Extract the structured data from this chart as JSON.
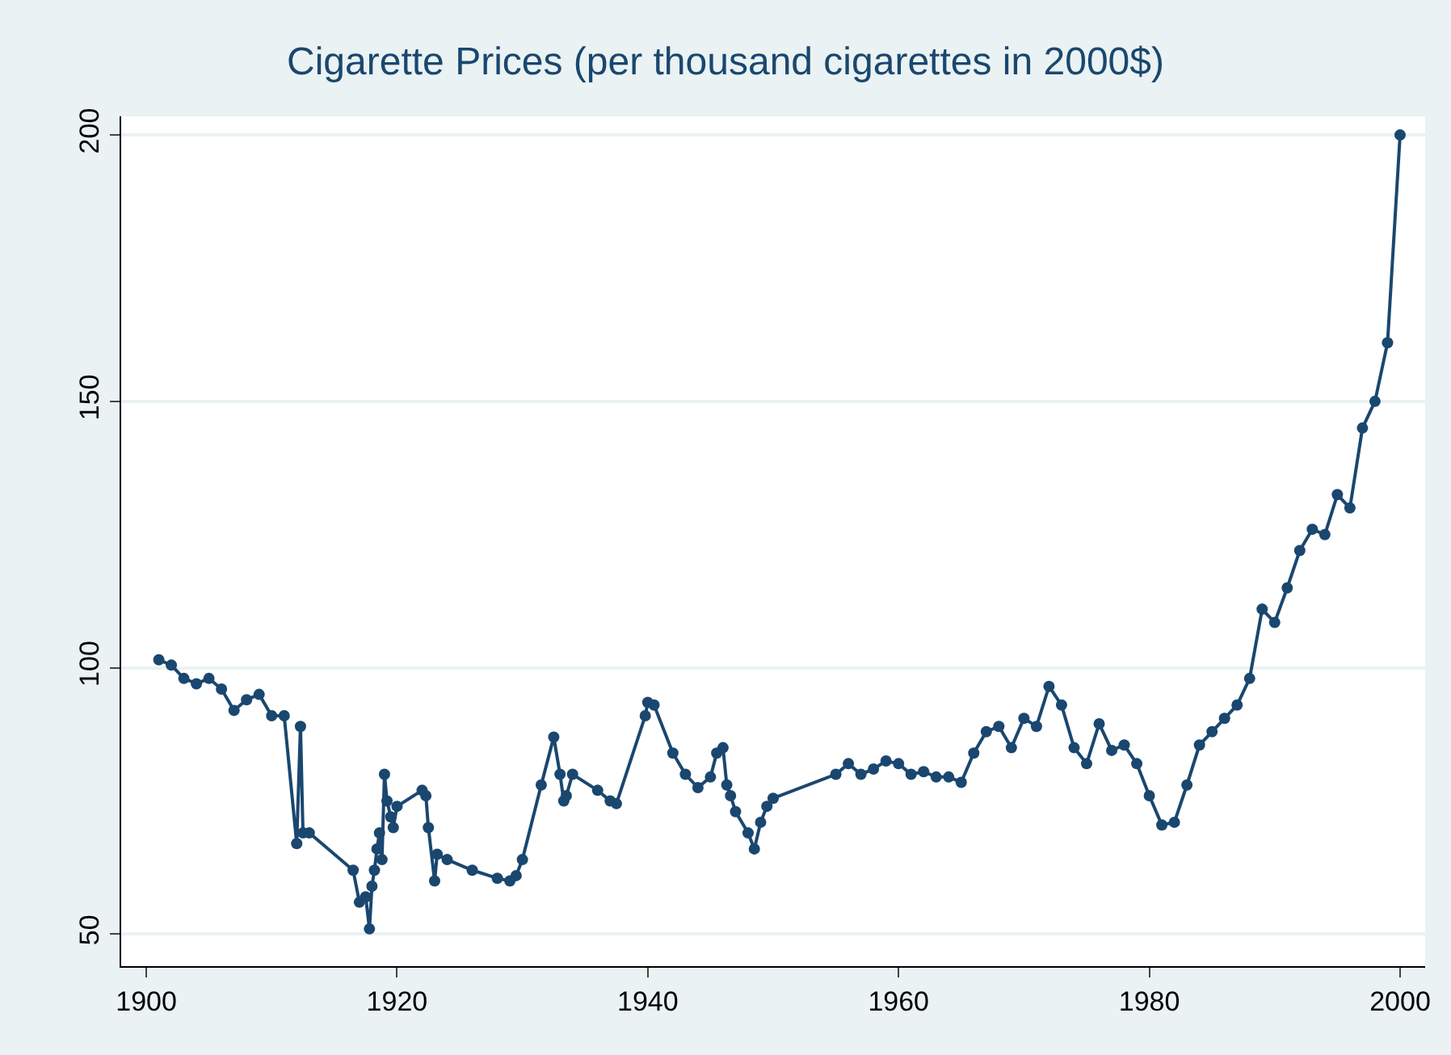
{
  "chart_data": {
    "type": "line",
    "title": "Cigarette Prices (per thousand cigarettes in 2000$)",
    "marker": "circle",
    "grid": "y",
    "xlim": [
      1898,
      2002
    ],
    "xticks": [
      1900,
      1920,
      1940,
      1960,
      1980,
      2000
    ],
    "ylim": [
      44,
      203.5
    ],
    "yticks": [
      50,
      100,
      150,
      200
    ],
    "series": [
      {
        "color": "#1a476f",
        "x": [
          1901,
          1902,
          1903,
          1904,
          1905,
          1906,
          1907,
          1908,
          1909,
          1910,
          1911,
          1912,
          1912.3,
          1912.5,
          1913,
          1916.5,
          1917,
          1917.5,
          1917.8,
          1918,
          1918.2,
          1918.4,
          1918.6,
          1918.8,
          1919,
          1919.2,
          1919.5,
          1919.7,
          1920,
          1922,
          1922.3,
          1922.5,
          1923,
          1923.2,
          1924,
          1926,
          1928,
          1929,
          1929.5,
          1930,
          1931.5,
          1932.5,
          1933,
          1933.3,
          1933.5,
          1934,
          1936,
          1937,
          1937.5,
          1939.8,
          1940,
          1940.5,
          1942,
          1943,
          1944,
          1945,
          1945.5,
          1946,
          1946.3,
          1946.6,
          1947,
          1948,
          1948.5,
          1949,
          1949.5,
          1950,
          1955,
          1956,
          1957,
          1958,
          1959,
          1960,
          1961,
          1962,
          1963,
          1964,
          1965,
          1966,
          1967,
          1968,
          1969,
          1970,
          1971,
          1972,
          1973,
          1974,
          1975,
          1976,
          1977,
          1978,
          1979,
          1980,
          1981,
          1982,
          1983,
          1984,
          1985,
          1986,
          1987,
          1988,
          1989,
          1990,
          1991,
          1992,
          1993,
          1994,
          1995,
          1996,
          1997,
          1998,
          1999,
          2000
        ],
        "values": [
          101.5,
          100.5,
          98,
          97,
          98,
          96,
          92,
          94,
          95,
          91,
          91,
          67,
          89,
          69,
          69,
          62,
          56,
          57,
          51,
          59,
          62,
          66,
          69,
          64,
          80,
          75,
          72,
          70,
          74,
          77,
          76,
          70,
          60,
          65,
          64,
          62,
          60.5,
          60,
          61,
          64,
          78,
          87,
          80,
          75,
          76,
          80,
          77,
          75,
          74.5,
          91,
          93.5,
          93,
          84,
          80,
          77.5,
          79.5,
          84,
          85,
          78,
          76,
          73,
          69,
          66,
          71,
          74,
          75.5,
          80,
          82,
          80,
          81,
          82.5,
          82,
          80,
          80.5,
          79.5,
          79.5,
          78.5,
          84,
          88,
          89,
          85,
          90.5,
          89,
          96.5,
          93,
          85,
          82,
          89.5,
          84.5,
          85.5,
          82,
          76,
          70.5,
          71,
          78,
          85.5,
          88,
          90.5,
          93,
          98,
          111,
          108.5,
          115,
          122,
          126,
          125,
          132.5,
          130,
          145,
          150,
          161,
          200
        ]
      }
    ]
  }
}
